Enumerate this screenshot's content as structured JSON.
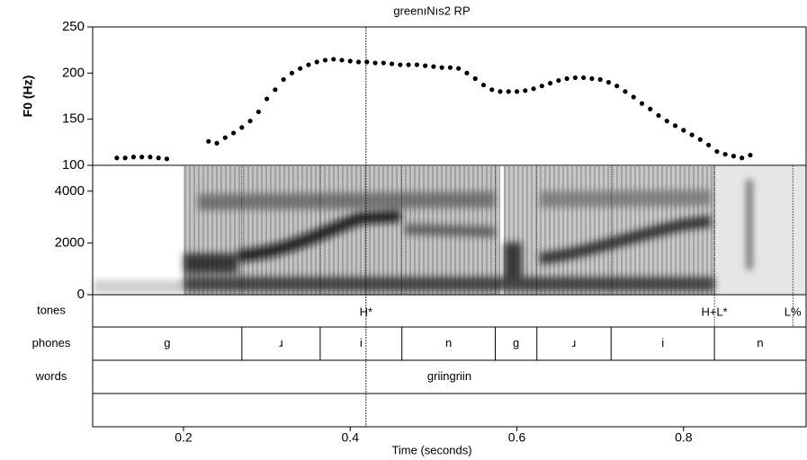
{
  "chart_data": {
    "type": "scatter",
    "title": "greenıNıs2  RP",
    "xlabel": "Time (seconds)",
    "ylabel": "F0 (Hz)",
    "xlim": [
      0.091,
      0.947
    ],
    "xticks": [
      0.2,
      0.4,
      0.6,
      0.8
    ],
    "ylim": [
      100,
      250
    ],
    "yticks": [
      100,
      150,
      200,
      250
    ],
    "color": "#000000",
    "x": [
      0.12,
      0.13,
      0.14,
      0.15,
      0.16,
      0.17,
      0.18,
      0.23,
      0.24,
      0.25,
      0.26,
      0.27,
      0.28,
      0.29,
      0.3,
      0.31,
      0.32,
      0.33,
      0.34,
      0.35,
      0.36,
      0.37,
      0.38,
      0.39,
      0.4,
      0.41,
      0.42,
      0.43,
      0.44,
      0.45,
      0.46,
      0.47,
      0.48,
      0.49,
      0.5,
      0.51,
      0.52,
      0.53,
      0.54,
      0.55,
      0.56,
      0.57,
      0.58,
      0.59,
      0.6,
      0.61,
      0.62,
      0.63,
      0.64,
      0.65,
      0.66,
      0.67,
      0.68,
      0.69,
      0.7,
      0.71,
      0.72,
      0.73,
      0.74,
      0.75,
      0.76,
      0.77,
      0.78,
      0.79,
      0.8,
      0.81,
      0.82,
      0.83,
      0.84,
      0.85,
      0.86,
      0.87,
      0.88
    ],
    "values": [
      108,
      108,
      109,
      109,
      109,
      108,
      107,
      126,
      124,
      130,
      135,
      141,
      148,
      158,
      172,
      182,
      193,
      200,
      205,
      209,
      212,
      214,
      215,
      214,
      213,
      212,
      212,
      211,
      211,
      210,
      209,
      209,
      209,
      208,
      207,
      206,
      206,
      205,
      200,
      194,
      187,
      182,
      180,
      180,
      180,
      181,
      183,
      186,
      189,
      192,
      194,
      195,
      195,
      194,
      193,
      190,
      186,
      180,
      174,
      167,
      161,
      154,
      148,
      143,
      138,
      133,
      128,
      122,
      115,
      112,
      110,
      108,
      111
    ],
    "spectrogram": {
      "ylim": [
        0,
        5000
      ],
      "yticks": [
        0,
        2000,
        4000
      ]
    },
    "tiers": [
      {
        "name": "tones",
        "points": [
          0.419,
          0.837,
          0.931
        ],
        "labels": [
          "H*",
          "H+L*",
          "L%"
        ]
      },
      {
        "name": "phones",
        "boundaries": [
          0.27,
          0.364,
          0.462,
          0.574,
          0.624,
          0.713,
          0.837
        ],
        "labels": [
          "g",
          "ɹ",
          "i",
          "n",
          "g",
          "ɹ",
          "i",
          "n"
        ]
      },
      {
        "name": "words",
        "boundaries": [],
        "labels": [
          "griingriin"
        ]
      }
    ]
  }
}
